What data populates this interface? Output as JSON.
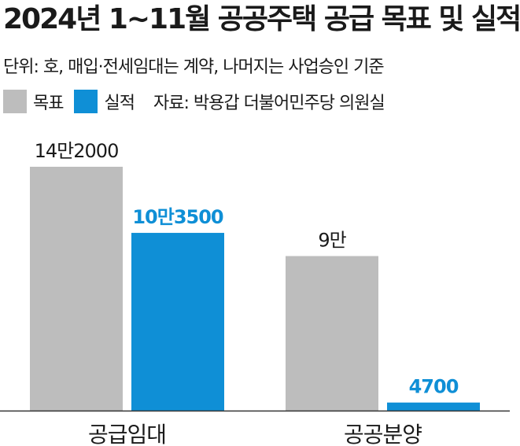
{
  "title": "2024년 1~11월 공공주택 공급 목표 및 실적",
  "unit_note": "단위: 호, 매입·전세임대는 계약, 나머지는 사업승인 기준",
  "source": "자료: 박용갑 더불어민주당 의원실",
  "colors": {
    "target": "#bdbdbd",
    "actual": "#0f8fd6",
    "text": "#1a1a1a",
    "axis": "#333333"
  },
  "chart_data": {
    "type": "bar",
    "title": "2024년 1~11월 공공주택 공급 목표 및 실적",
    "categories": [
      "공급임대",
      "공공분양"
    ],
    "series": [
      {
        "name": "목표",
        "values": [
          142000,
          90000
        ],
        "labels": [
          "14만2000",
          "9만"
        ],
        "color": "#bdbdbd"
      },
      {
        "name": "실적",
        "values": [
          103500,
          4700
        ],
        "labels": [
          "10만3500",
          "4700"
        ],
        "color": "#0f8fd6"
      }
    ],
    "ylim": [
      0,
      142000
    ],
    "legend": "top-left",
    "grid": false,
    "xlabel": "",
    "ylabel": ""
  }
}
